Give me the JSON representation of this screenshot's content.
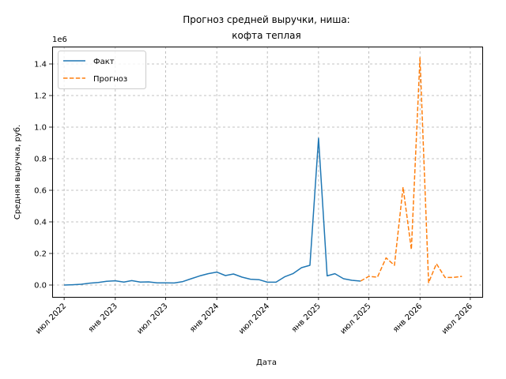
{
  "chart_data": {
    "type": "line",
    "title_line1": "Прогноз средней выручки, ниша:",
    "title_line2": "кофта теплая",
    "xlabel": "Дата",
    "ylabel": "Средняя выручка, руб.",
    "y_offset_label": "1e6",
    "grid": true,
    "legend_position": "top-left",
    "ylim": [
      -75000,
      1510000
    ],
    "xlim": [
      "2022-05-19",
      "2026-08-13"
    ],
    "y_ticks": [
      0,
      200000,
      400000,
      600000,
      800000,
      1000000,
      1200000,
      1400000
    ],
    "y_tick_labels": [
      "0.0",
      "0.2",
      "0.4",
      "0.6",
      "0.8",
      "1.0",
      "1.2",
      "1.4"
    ],
    "x_ticks": [
      "2022-07-01",
      "2023-01-01",
      "2023-07-01",
      "2024-01-01",
      "2024-07-01",
      "2025-01-01",
      "2025-07-01",
      "2026-01-01",
      "2026-07-01"
    ],
    "x_tick_labels": [
      "июл 2022",
      "янв 2023",
      "июл 2023",
      "янв 2024",
      "июл 2024",
      "янв 2025",
      "июл 2025",
      "янв 2026",
      "июл 2026"
    ],
    "series": [
      {
        "name": "Факт",
        "color": "#1f77b4",
        "style": "solid",
        "x": [
          "2022-07-01",
          "2022-08-01",
          "2022-09-01",
          "2022-10-01",
          "2022-11-01",
          "2022-12-01",
          "2023-01-01",
          "2023-02-01",
          "2023-03-01",
          "2023-04-01",
          "2023-05-01",
          "2023-06-01",
          "2023-07-01",
          "2023-08-01",
          "2023-09-01",
          "2023-10-01",
          "2023-11-01",
          "2023-12-01",
          "2024-01-01",
          "2024-02-01",
          "2024-03-01",
          "2024-04-01",
          "2024-05-01",
          "2024-06-01",
          "2024-07-01",
          "2024-08-01",
          "2024-09-01",
          "2024-10-01",
          "2024-11-01",
          "2024-12-01",
          "2025-01-01",
          "2025-02-01",
          "2025-03-01",
          "2025-04-01",
          "2025-05-01",
          "2025-06-01"
        ],
        "y": [
          0,
          2000,
          5000,
          12000,
          16000,
          24000,
          27000,
          19000,
          28000,
          19000,
          20000,
          14000,
          14000,
          13000,
          22000,
          40000,
          58000,
          72000,
          82000,
          60000,
          70000,
          50000,
          37000,
          34000,
          18000,
          18000,
          52000,
          72000,
          110000,
          125000,
          930000,
          58000,
          72000,
          40000,
          30000,
          25000
        ]
      },
      {
        "name": "Прогноз",
        "color": "#ff7f0e",
        "style": "dashed",
        "x": [
          "2025-06-01",
          "2025-07-01",
          "2025-08-01",
          "2025-09-01",
          "2025-10-01",
          "2025-11-01",
          "2025-12-01",
          "2026-01-01",
          "2026-02-01",
          "2026-03-01",
          "2026-04-01",
          "2026-05-01",
          "2026-06-01"
        ],
        "y": [
          25000,
          55000,
          50000,
          172000,
          125000,
          620000,
          225000,
          1440000,
          15000,
          135000,
          48000,
          48000,
          55000
        ]
      }
    ]
  }
}
